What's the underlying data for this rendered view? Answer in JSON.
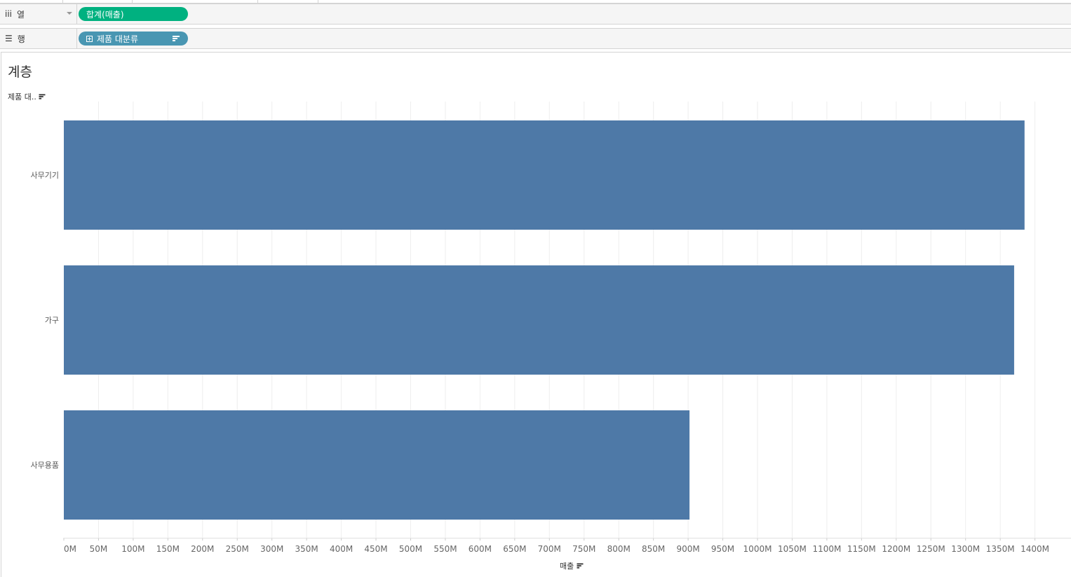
{
  "shelves": {
    "columns": {
      "label": "열",
      "icon": "columns-icon",
      "pill": {
        "text": "합계(매출)",
        "color": "#00b180"
      }
    },
    "rows": {
      "label": "행",
      "icon": "rows-icon",
      "pill": {
        "text": "제품 대분류",
        "color": "#4996b2",
        "icons": [
          "expand-plus-icon",
          "sort-icon"
        ]
      }
    }
  },
  "sheet": {
    "title": "계층",
    "row_header": "제품 대..",
    "x_axis_title": "매출"
  },
  "chart_data": {
    "type": "bar",
    "orientation": "horizontal",
    "categories": [
      "사무기기",
      "가구",
      "사무용품"
    ],
    "values": [
      1385,
      1370,
      902
    ],
    "unit": "M",
    "xlim": [
      0,
      1400
    ],
    "x_ticks": [
      "0M",
      "50M",
      "100M",
      "150M",
      "200M",
      "250M",
      "300M",
      "350M",
      "400M",
      "450M",
      "500M",
      "550M",
      "600M",
      "650M",
      "700M",
      "750M",
      "800M",
      "850M",
      "900M",
      "950M",
      "1000M",
      "1050M",
      "1100M",
      "1150M",
      "1200M",
      "1250M",
      "1300M",
      "1350M",
      "1400M"
    ],
    "bar_color": "#4e79a7",
    "grid": true
  }
}
